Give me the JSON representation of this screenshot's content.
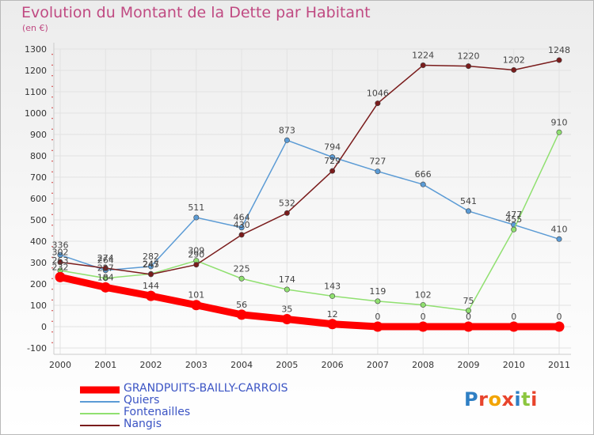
{
  "title": "Evolution du Montant de la Dette par Habitant",
  "unit_label": "(en €)",
  "brand": {
    "text": "Proxiti",
    "colors": [
      "#2f7fc4",
      "#e8442c",
      "#f2a400",
      "#e8442c",
      "#2f7fc4",
      "#8cc63f",
      "#e8442c"
    ]
  },
  "colors": {
    "title": "#c04a82",
    "legend_text": "#3b54c4",
    "axis_text": "#333333",
    "grid": "#e2e2e2"
  },
  "chart_data": {
    "type": "line",
    "x": [
      "2000",
      "2001",
      "2002",
      "2003",
      "2004",
      "2005",
      "2006",
      "2007",
      "2008",
      "2009",
      "2010",
      "2011"
    ],
    "ylim": [
      -100,
      1300
    ],
    "yticks": [
      "-100",
      "0",
      "100",
      "200",
      "300",
      "400",
      "500",
      "600",
      "700",
      "800",
      "900",
      "1000",
      "1100",
      "1200",
      "1300"
    ],
    "grid": true,
    "legend_position": "bottom-left",
    "series": [
      {
        "name": "GRANDPUITS-BAILLY-CARROIS",
        "color": "#ff0000",
        "values": [
          232,
          184,
          144,
          101,
          56,
          35,
          12,
          0,
          0,
          0,
          0,
          0
        ]
      },
      {
        "name": "Quiers",
        "color": "#5b9bd5",
        "values": [
          336,
          264,
          282,
          511,
          464,
          873,
          794,
          727,
          666,
          541,
          477,
          410
        ]
      },
      {
        "name": "Fontenailles",
        "color": "#90e070",
        "values": [
          263,
          227,
          247,
          309,
          225,
          174,
          143,
          119,
          102,
          75,
          455,
          910
        ]
      },
      {
        "name": "Nangis",
        "color": "#7a1c1c",
        "values": [
          302,
          274,
          245,
          290,
          430,
          532,
          729,
          1046,
          1224,
          1220,
          1202,
          1248
        ]
      }
    ]
  }
}
